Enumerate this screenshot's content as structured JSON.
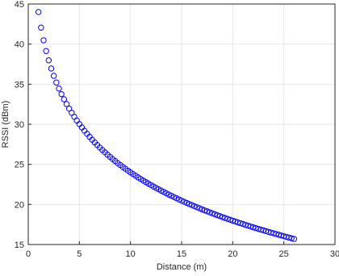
{
  "chart_data": {
    "type": "scatter",
    "x_label": "Distance (m)",
    "y_label": "RSSI (dBm)",
    "xlim": [
      0,
      30
    ],
    "ylim": [
      15,
      45
    ],
    "xticks": [
      0,
      5,
      10,
      15,
      20,
      25,
      30
    ],
    "yticks": [
      15,
      20,
      25,
      30,
      35,
      40,
      45
    ],
    "grid": true,
    "color": "#0000ff",
    "x": [
      1,
      1.25,
      1.5,
      1.75,
      2,
      2.25,
      2.5,
      2.75,
      3,
      3.25,
      3.5,
      3.75,
      4,
      4.25,
      4.5,
      4.75,
      5,
      5.25,
      5.5,
      5.75,
      6,
      6.25,
      6.5,
      6.75,
      7,
      7.25,
      7.5,
      7.75,
      8,
      8.25,
      8.5,
      8.75,
      9,
      9.25,
      9.5,
      9.75,
      10,
      10.25,
      10.5,
      10.75,
      11,
      11.25,
      11.5,
      11.75,
      12,
      12.25,
      12.5,
      12.75,
      13,
      13.25,
      13.5,
      13.75,
      14,
      14.25,
      14.5,
      14.75,
      15,
      15.25,
      15.5,
      15.75,
      16,
      16.25,
      16.5,
      16.75,
      17,
      17.25,
      17.5,
      17.75,
      18,
      18.25,
      18.5,
      18.75,
      19,
      19.25,
      19.5,
      19.75,
      20,
      20.25,
      20.5,
      20.75,
      21,
      21.25,
      21.5,
      21.75,
      22,
      22.25,
      22.5,
      22.75,
      23,
      23.25,
      23.5,
      23.75,
      24,
      24.25,
      24.5,
      24.75,
      25,
      25.25,
      25.5,
      25.75,
      26
    ],
    "values": [
      44.0,
      42.06,
      40.48,
      39.14,
      37.98,
      36.96,
      36.04,
      35.21,
      34.46,
      33.76,
      33.12,
      32.52,
      31.96,
      31.43,
      30.94,
      30.47,
      30.02,
      29.6,
      29.19,
      28.81,
      28.44,
      28.08,
      27.74,
      27.41,
      27.1,
      26.79,
      26.5,
      26.21,
      25.94,
      25.67,
      25.41,
      25.16,
      24.92,
      24.68,
      24.45,
      24.22,
      24.0,
      23.79,
      23.58,
      23.37,
      23.17,
      22.98,
      22.79,
      22.6,
      22.42,
      22.24,
      22.06,
      21.89,
      21.72,
      21.56,
      21.39,
      21.23,
      21.08,
      20.92,
      20.77,
      20.62,
      20.48,
      20.33,
      20.19,
      20.05,
      19.92,
      19.78,
      19.65,
      19.52,
      19.39,
      19.26,
      19.14,
      19.02,
      18.89,
      18.77,
      18.66,
      18.54,
      18.42,
      18.31,
      18.2,
      18.09,
      17.98,
      17.87,
      17.76,
      17.66,
      17.56,
      17.45,
      17.35,
      17.25,
      17.15,
      17.05,
      16.96,
      16.86,
      16.77,
      16.67,
      16.58,
      16.49,
      16.4,
      16.31,
      16.22,
      16.13,
      16.04,
      15.95,
      15.87,
      15.78,
      15.7
    ]
  }
}
